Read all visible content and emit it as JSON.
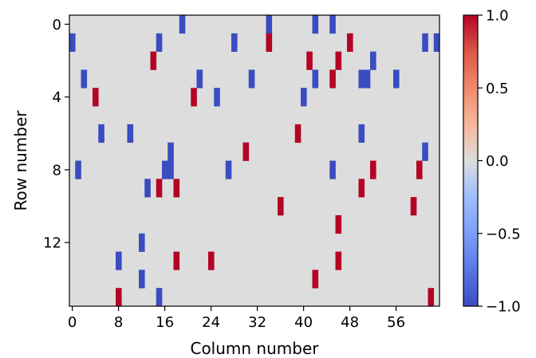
{
  "chart_data": {
    "type": "heatmap",
    "title": "",
    "xlabel": "Column number",
    "ylabel": "Row number",
    "n_rows": 16,
    "n_cols": 64,
    "x_ticks": [
      0,
      8,
      16,
      24,
      32,
      40,
      48,
      56
    ],
    "y_ticks": [
      0,
      4,
      8,
      12
    ],
    "colormap": "coolwarm",
    "colorbar": {
      "range": [
        -1.0,
        1.0
      ],
      "ticks": [
        -1.0,
        -0.5,
        0.0,
        0.5,
        1.0
      ],
      "tick_labels": [
        "−1.0",
        "−0.5",
        "0.0",
        "0.5",
        "1.0"
      ]
    },
    "colors": {
      "positive": "#b40426",
      "negative": "#3b4cc0",
      "zero": "#dddddd"
    },
    "cells": [
      {
        "row": 0,
        "col": 19,
        "value": -1
      },
      {
        "row": 0,
        "col": 34,
        "value": -1
      },
      {
        "row": 0,
        "col": 42,
        "value": -1
      },
      {
        "row": 0,
        "col": 45,
        "value": -1
      },
      {
        "row": 1,
        "col": 0,
        "value": -1
      },
      {
        "row": 1,
        "col": 15,
        "value": -1
      },
      {
        "row": 1,
        "col": 28,
        "value": -1
      },
      {
        "row": 1,
        "col": 34,
        "value": 1
      },
      {
        "row": 1,
        "col": 48,
        "value": 1
      },
      {
        "row": 1,
        "col": 61,
        "value": -1
      },
      {
        "row": 1,
        "col": 63,
        "value": -1
      },
      {
        "row": 2,
        "col": 14,
        "value": 1
      },
      {
        "row": 2,
        "col": 41,
        "value": 1
      },
      {
        "row": 2,
        "col": 46,
        "value": 1
      },
      {
        "row": 2,
        "col": 52,
        "value": -1
      },
      {
        "row": 3,
        "col": 2,
        "value": -1
      },
      {
        "row": 3,
        "col": 22,
        "value": -1
      },
      {
        "row": 3,
        "col": 31,
        "value": -1
      },
      {
        "row": 3,
        "col": 42,
        "value": -1
      },
      {
        "row": 3,
        "col": 45,
        "value": 1
      },
      {
        "row": 3,
        "col": 50,
        "value": -1
      },
      {
        "row": 3,
        "col": 51,
        "value": -1
      },
      {
        "row": 3,
        "col": 56,
        "value": -1
      },
      {
        "row": 4,
        "col": 4,
        "value": 1
      },
      {
        "row": 4,
        "col": 21,
        "value": 1
      },
      {
        "row": 4,
        "col": 25,
        "value": -1
      },
      {
        "row": 4,
        "col": 40,
        "value": -1
      },
      {
        "row": 6,
        "col": 5,
        "value": -1
      },
      {
        "row": 6,
        "col": 10,
        "value": -1
      },
      {
        "row": 6,
        "col": 39,
        "value": 1
      },
      {
        "row": 6,
        "col": 50,
        "value": -1
      },
      {
        "row": 7,
        "col": 17,
        "value": -1
      },
      {
        "row": 7,
        "col": 30,
        "value": 1
      },
      {
        "row": 7,
        "col": 61,
        "value": -1
      },
      {
        "row": 8,
        "col": 1,
        "value": -1
      },
      {
        "row": 8,
        "col": 16,
        "value": -1
      },
      {
        "row": 8,
        "col": 17,
        "value": -1
      },
      {
        "row": 8,
        "col": 27,
        "value": -1
      },
      {
        "row": 8,
        "col": 45,
        "value": -1
      },
      {
        "row": 8,
        "col": 52,
        "value": 1
      },
      {
        "row": 8,
        "col": 60,
        "value": 1
      },
      {
        "row": 9,
        "col": 13,
        "value": -1
      },
      {
        "row": 9,
        "col": 15,
        "value": 1
      },
      {
        "row": 9,
        "col": 18,
        "value": 1
      },
      {
        "row": 9,
        "col": 50,
        "value": 1
      },
      {
        "row": 10,
        "col": 36,
        "value": 1
      },
      {
        "row": 10,
        "col": 59,
        "value": 1
      },
      {
        "row": 11,
        "col": 46,
        "value": 1
      },
      {
        "row": 12,
        "col": 12,
        "value": -1
      },
      {
        "row": 13,
        "col": 8,
        "value": -1
      },
      {
        "row": 13,
        "col": 18,
        "value": 1
      },
      {
        "row": 13,
        "col": 24,
        "value": 1
      },
      {
        "row": 13,
        "col": 46,
        "value": 1
      },
      {
        "row": 14,
        "col": 12,
        "value": -1
      },
      {
        "row": 14,
        "col": 42,
        "value": 1
      },
      {
        "row": 15,
        "col": 8,
        "value": 1
      },
      {
        "row": 15,
        "col": 15,
        "value": -1
      },
      {
        "row": 15,
        "col": 62,
        "value": 1
      }
    ]
  }
}
